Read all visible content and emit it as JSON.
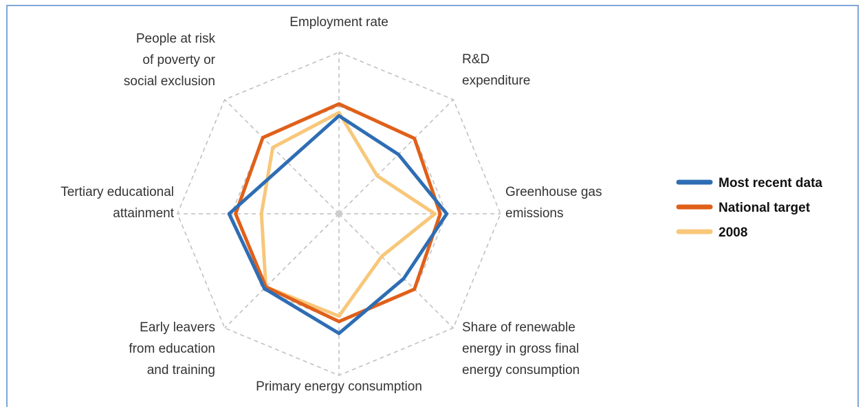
{
  "chart_data": {
    "type": "radar",
    "categories": [
      [
        "Employment rate"
      ],
      [
        "R&D",
        "expenditure"
      ],
      [
        "Greenhouse gas",
        "emissions"
      ],
      [
        "Share of renewable",
        "energy in gross final",
        "energy consumption"
      ],
      [
        "Primary energy consumption"
      ],
      [
        "Early leavers",
        "from education",
        "and training"
      ],
      [
        "Tertiary educational",
        "attainment"
      ],
      [
        "People at risk",
        "of poverty or",
        "social exclusion"
      ]
    ],
    "series": [
      {
        "name": "Most recent data",
        "color": "#2e6db4",
        "values": [
          91,
          78,
          100,
          85,
          111,
          98,
          102,
          68
        ]
      },
      {
        "name": "National target",
        "color": "#e0601a",
        "values": [
          102,
          99,
          94,
          99,
          100,
          96,
          96,
          100
        ]
      },
      {
        "name": "2008",
        "color": "#f8c77a",
        "values": [
          94,
          50,
          89,
          56,
          95,
          96,
          72,
          87
        ]
      }
    ],
    "rlim": [
      0,
      150
    ],
    "rticks": [
      100,
      150
    ],
    "grid": true
  }
}
